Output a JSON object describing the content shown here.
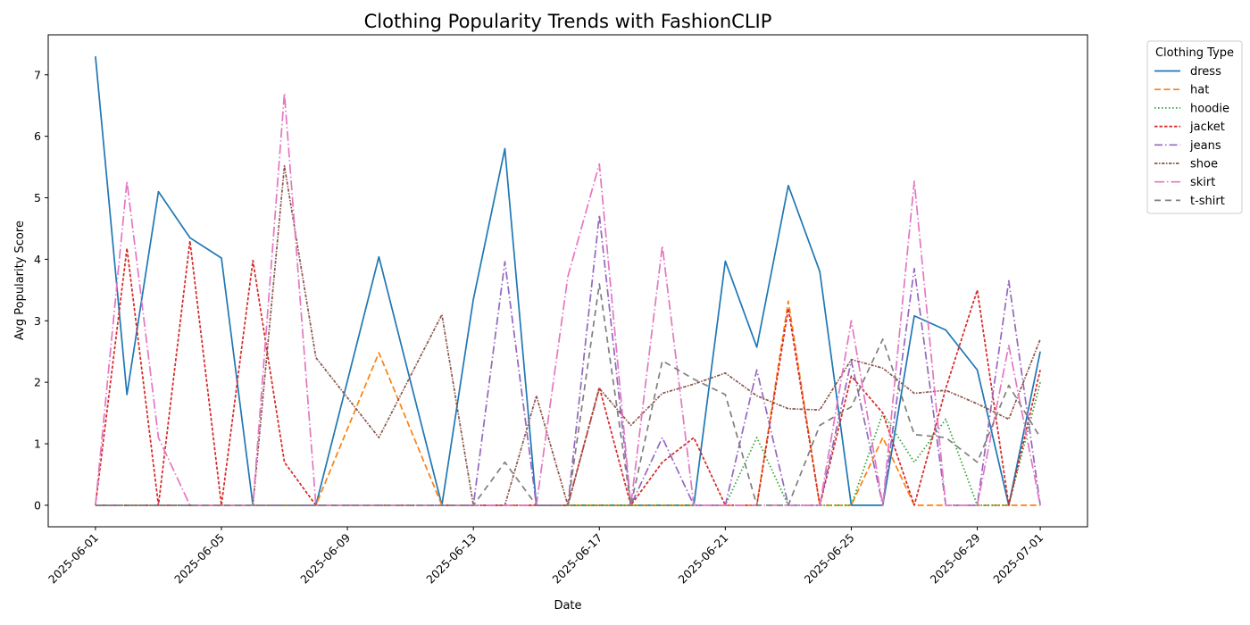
{
  "chart_data": {
    "type": "line",
    "title": "Clothing Popularity Trends with FashionCLIP",
    "xlabel": "Date",
    "ylabel": "Avg Popularity Score",
    "legend_title": "Clothing Type",
    "legend_position": "outside-top-right",
    "grid": false,
    "ylim": [
      -0.35,
      7.65
    ],
    "yticks": [
      0,
      1,
      2,
      3,
      4,
      5,
      6,
      7
    ],
    "x": [
      "2025-06-01",
      "2025-06-02",
      "2025-06-03",
      "2025-06-04",
      "2025-06-05",
      "2025-06-06",
      "2025-06-07",
      "2025-06-08",
      "2025-06-10",
      "2025-06-12",
      "2025-06-13",
      "2025-06-14",
      "2025-06-15",
      "2025-06-16",
      "2025-06-17",
      "2025-06-18",
      "2025-06-19",
      "2025-06-20",
      "2025-06-21",
      "2025-06-22",
      "2025-06-23",
      "2025-06-24",
      "2025-06-25",
      "2025-06-26",
      "2025-06-27",
      "2025-06-28",
      "2025-06-29",
      "2025-06-30",
      "2025-07-01"
    ],
    "xlim": [
      "2025-05-30T12:00",
      "2025-07-02T12:00"
    ],
    "xticks": [
      "2025-06-01",
      "2025-06-05",
      "2025-06-09",
      "2025-06-13",
      "2025-06-17",
      "2025-06-21",
      "2025-06-25",
      "2025-06-29",
      "2025-07-01"
    ],
    "series": [
      {
        "name": "dress",
        "color": "#1f77b4",
        "style": "solid",
        "values": [
          7.3,
          1.8,
          5.1,
          4.35,
          4.02,
          0,
          0,
          0,
          4.04,
          0,
          3.35,
          5.8,
          0,
          0,
          0,
          0,
          0,
          0,
          3.97,
          2.57,
          5.2,
          3.8,
          0,
          0,
          3.08,
          2.85,
          2.2,
          0,
          2.5
        ]
      },
      {
        "name": "hat",
        "color": "#ff7f0e",
        "style": "dashed",
        "values": [
          0,
          0,
          0,
          0,
          0,
          0,
          0,
          0,
          2.48,
          0,
          0,
          0,
          0,
          0,
          0,
          0,
          0,
          0,
          0,
          0,
          3.32,
          0,
          0,
          1.1,
          0,
          0,
          0,
          0,
          0
        ]
      },
      {
        "name": "hoodie",
        "color": "#2ca02c",
        "style": "dotted",
        "values": [
          0,
          0,
          0,
          0,
          0,
          0,
          0,
          0,
          0,
          0,
          0,
          0,
          0,
          0,
          0,
          0,
          0,
          0,
          0,
          1.1,
          0,
          0,
          0,
          1.5,
          0.7,
          1.4,
          0,
          0,
          2.0
        ]
      },
      {
        "name": "jacket",
        "color": "#d62728",
        "style": "densedash",
        "values": [
          0,
          4.18,
          0,
          4.3,
          0,
          3.98,
          0.7,
          0,
          0,
          0,
          0,
          0,
          0,
          0,
          1.92,
          0,
          0.7,
          1.1,
          0,
          0,
          3.2,
          0,
          2.1,
          1.5,
          0,
          1.9,
          3.5,
          0,
          2.2
        ]
      },
      {
        "name": "jeans",
        "color": "#9467bd",
        "style": "dashdot",
        "values": [
          0,
          0,
          0,
          0,
          0,
          0,
          0,
          0,
          0,
          0,
          0,
          3.96,
          0,
          0,
          4.72,
          0,
          1.1,
          0,
          0,
          2.2,
          0,
          0,
          2.35,
          0,
          3.85,
          0,
          0,
          3.65,
          0
        ]
      },
      {
        "name": "shoe",
        "color": "#8c564b",
        "style": "densedashdot",
        "values": [
          0,
          0,
          0,
          0,
          0,
          0,
          5.52,
          2.4,
          1.1,
          3.1,
          0,
          0,
          1.78,
          0,
          1.9,
          1.3,
          1.82,
          1.97,
          2.15,
          1.78,
          1.57,
          1.55,
          2.37,
          2.23,
          1.82,
          1.87,
          1.65,
          1.4,
          2.7
        ]
      },
      {
        "name": "skirt",
        "color": "#e377c2",
        "style": "longdashdot",
        "values": [
          0,
          5.27,
          1.1,
          0,
          0,
          0,
          6.7,
          0,
          0,
          0,
          0,
          0,
          0,
          3.72,
          5.55,
          0,
          4.22,
          0,
          0,
          0,
          0,
          0,
          3.0,
          0,
          5.27,
          0,
          0,
          2.6,
          0
        ]
      },
      {
        "name": "t-shirt",
        "color": "#7f7f7f",
        "style": "loosedash",
        "values": [
          0,
          0,
          0,
          0,
          0,
          0,
          0,
          0,
          0,
          0,
          0,
          0.7,
          0,
          0,
          3.6,
          0,
          2.35,
          2.05,
          1.8,
          0,
          0,
          1.3,
          1.6,
          2.7,
          1.15,
          1.1,
          0.7,
          1.95,
          1.1
        ]
      }
    ]
  }
}
